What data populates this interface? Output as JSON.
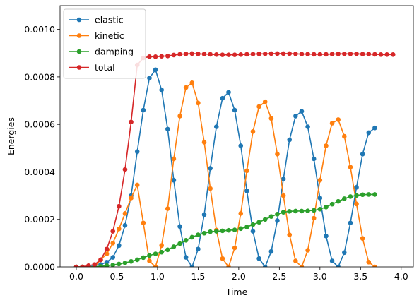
{
  "chart_data": {
    "type": "line",
    "xlabel": "Time",
    "ylabel": "Energies",
    "xlim": [
      -0.2,
      4.15
    ],
    "ylim": [
      0,
      0.0011
    ],
    "x_ticks": [
      0.0,
      0.5,
      1.0,
      1.5,
      2.0,
      2.5,
      3.0,
      3.5,
      4.0
    ],
    "x_tick_labels": [
      "0.0",
      "0.5",
      "1.0",
      "1.5",
      "2.0",
      "2.5",
      "3.0",
      "3.5",
      "4.0"
    ],
    "y_ticks": [
      0,
      0.0002,
      0.0004,
      0.0006,
      0.0008,
      0.001
    ],
    "y_tick_labels": [
      "0.0000",
      "0.0002",
      "0.0004",
      "0.0006",
      "0.0008",
      "0.0010"
    ],
    "legend_position": "top-left",
    "grid": false,
    "x": [
      0.0,
      0.075,
      0.15,
      0.225,
      0.3,
      0.375,
      0.45,
      0.525,
      0.6,
      0.675,
      0.75,
      0.825,
      0.9,
      0.975,
      1.05,
      1.125,
      1.2,
      1.275,
      1.35,
      1.425,
      1.5,
      1.575,
      1.65,
      1.725,
      1.8,
      1.875,
      1.95,
      2.025,
      2.1,
      2.175,
      2.25,
      2.325,
      2.4,
      2.475,
      2.55,
      2.625,
      2.7,
      2.775,
      2.85,
      2.925,
      3.0,
      3.075,
      3.15,
      3.225,
      3.3,
      3.375,
      3.45,
      3.525,
      3.6,
      3.675,
      3.75,
      3.825,
      3.9
    ],
    "series": [
      {
        "name": "elastic",
        "color": "#1f77b4",
        "values": [
          0,
          0,
          0,
          5e-06,
          1e-05,
          2e-05,
          4e-05,
          9e-05,
          0.000175,
          0.0003,
          0.000485,
          0.00066,
          0.000795,
          0.00083,
          0.000745,
          0.00058,
          0.000365,
          0.00017,
          4e-05,
          0,
          7.5e-05,
          0.00022,
          0.000415,
          0.00059,
          0.00071,
          0.000735,
          0.00066,
          0.00051,
          0.00032,
          0.00015,
          3.5e-05,
          0,
          6.5e-05,
          0.000195,
          0.00037,
          0.000535,
          0.000635,
          0.000655,
          0.00059,
          0.000455,
          0.00029,
          0.00013,
          2.5e-05,
          0,
          6e-05,
          0.000185,
          0.000335,
          0.000475,
          0.000565,
          0.000585,
          null,
          null,
          null
        ]
      },
      {
        "name": "kinetic",
        "color": "#ff7f0e",
        "values": [
          0,
          0,
          0,
          0,
          3e-05,
          5.5e-05,
          0.0001,
          0.00016,
          0.000225,
          0.00029,
          0.000345,
          0.000185,
          2.5e-05,
          0,
          9e-05,
          0.000245,
          0.000455,
          0.000635,
          0.000755,
          0.000775,
          0.00069,
          0.000525,
          0.00033,
          0.000155,
          3.5e-05,
          0,
          8e-05,
          0.000225,
          0.000405,
          0.00057,
          0.000675,
          0.000695,
          0.000625,
          0.000475,
          0.0003,
          0.000135,
          2.5e-05,
          0,
          7e-05,
          0.000205,
          0.000365,
          0.00051,
          0.000605,
          0.00062,
          0.00055,
          0.00042,
          0.000265,
          0.00012,
          2e-05,
          0,
          null,
          null,
          null
        ]
      },
      {
        "name": "damping",
        "color": "#2ca02c",
        "values": [
          0,
          0,
          0,
          0,
          2e-06,
          5e-06,
          8e-06,
          1.2e-05,
          1.7e-05,
          2.3e-05,
          3e-05,
          3.9e-05,
          4.8e-05,
          5.5e-05,
          6.2e-05,
          7.2e-05,
          8.5e-05,
          9.8e-05,
          0.000112,
          0.000125,
          0.000135,
          0.000142,
          0.000148,
          0.00015,
          0.000152,
          0.000154,
          0.000156,
          0.000161,
          0.000168,
          0.000178,
          0.000188,
          0.0002,
          0.000212,
          0.000222,
          0.00023,
          0.000234,
          0.000235,
          0.000235,
          0.000236,
          0.000238,
          0.000243,
          0.000252,
          0.000264,
          0.000276,
          0.000287,
          0.000296,
          0.000301,
          0.000304,
          0.000305,
          0.000305,
          null,
          null,
          null
        ]
      },
      {
        "name": "total",
        "color": "#d62728",
        "values": [
          0,
          0,
          5e-06,
          1e-05,
          3e-05,
          7.5e-05,
          0.00015,
          0.000255,
          0.00041,
          0.00061,
          0.00085,
          0.00088,
          0.000885,
          0.000885,
          0.000887,
          0.000888,
          0.000892,
          0.000895,
          0.000897,
          0.000898,
          0.000897,
          0.000896,
          0.000895,
          0.000894,
          0.000893,
          0.000893,
          0.000893,
          0.000894,
          0.000895,
          0.000896,
          0.000897,
          0.000897,
          0.000898,
          0.000898,
          0.000898,
          0.000898,
          0.000897,
          0.000896,
          0.000896,
          0.000895,
          0.000895,
          0.000895,
          0.000896,
          0.000897,
          0.000897,
          0.000897,
          0.000897,
          0.000896,
          0.000896,
          0.000895,
          0.000894,
          0.000894,
          0.000894
        ]
      }
    ]
  }
}
